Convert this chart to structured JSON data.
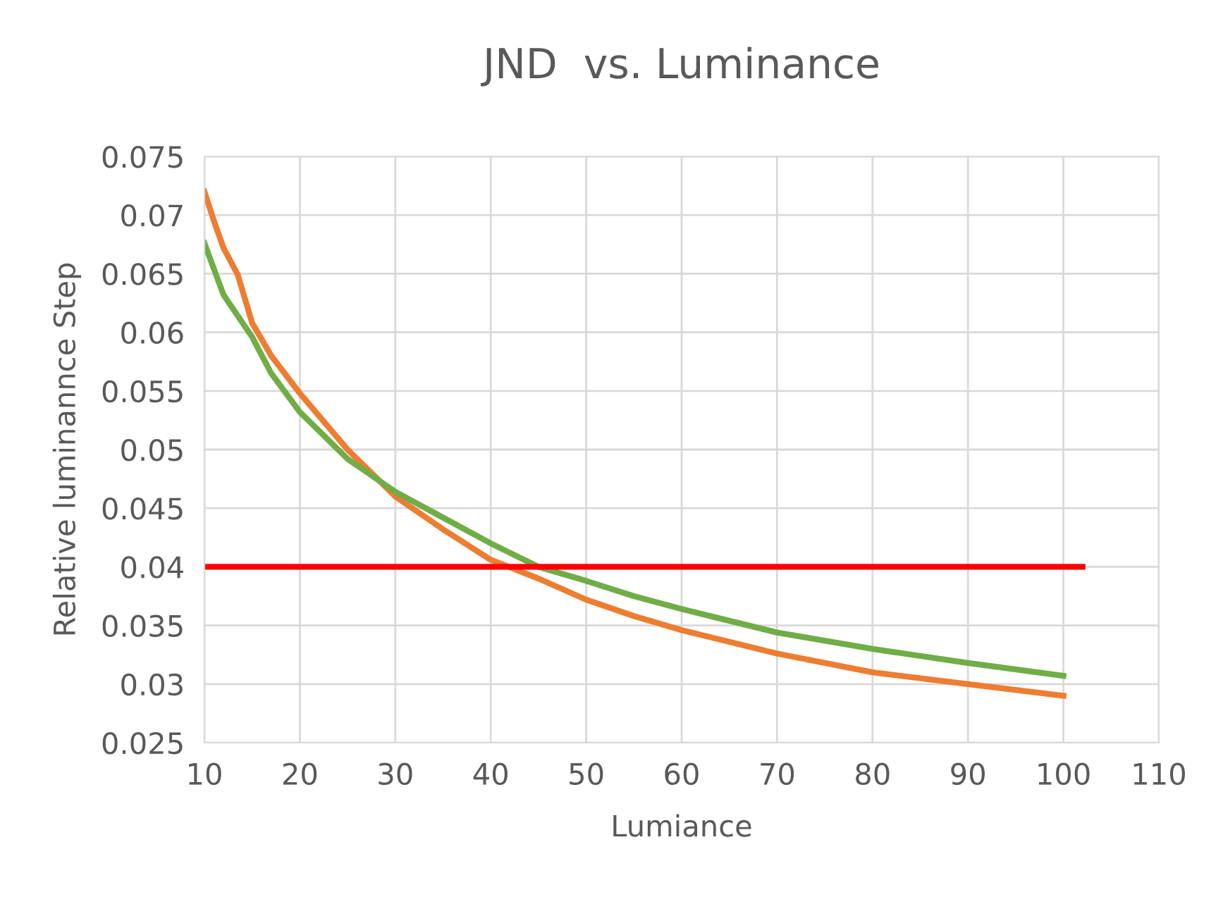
{
  "chart_data": {
    "type": "line",
    "title": "JND  vs. Luminance",
    "xlabel": "Lumiance",
    "ylabel": "Relative luminannce Step",
    "xlim": [
      10,
      110
    ],
    "xticks": [
      10,
      20,
      30,
      40,
      50,
      60,
      70,
      80,
      90,
      100,
      110
    ],
    "ylim": [
      0.025,
      0.075
    ],
    "yticks": [
      0.025,
      0.03,
      0.035,
      0.04,
      0.045,
      0.05,
      0.055,
      0.06,
      0.065,
      0.07,
      0.075
    ],
    "grid": true,
    "marker": "none",
    "line_style": "solid",
    "series": [
      {
        "color": "#ed7d31",
        "x": [
          10,
          11,
          12,
          13.5,
          15,
          17,
          20,
          25,
          30,
          35,
          40,
          45,
          50,
          55,
          60,
          70,
          80,
          90,
          100
        ],
        "values": [
          0.072,
          0.0695,
          0.0672,
          0.0649,
          0.0608,
          0.058,
          0.0548,
          0.05,
          0.046,
          0.0432,
          0.0406,
          0.039,
          0.0372,
          0.0358,
          0.0346,
          0.0326,
          0.031,
          0.03,
          0.029
        ]
      },
      {
        "color": "#70ad47",
        "x": [
          10,
          12,
          15,
          17,
          20,
          25,
          30,
          35,
          40,
          45,
          50,
          55,
          60,
          70,
          80,
          90,
          100
        ],
        "values": [
          0.0676,
          0.0632,
          0.0596,
          0.0565,
          0.0532,
          0.0492,
          0.0464,
          0.0442,
          0.042,
          0.04,
          0.0388,
          0.0375,
          0.0364,
          0.0344,
          0.033,
          0.0318,
          0.0307
        ]
      },
      {
        "color": "#ff0000",
        "x": [
          10,
          102
        ],
        "values": [
          0.04,
          0.04
        ]
      }
    ]
  }
}
